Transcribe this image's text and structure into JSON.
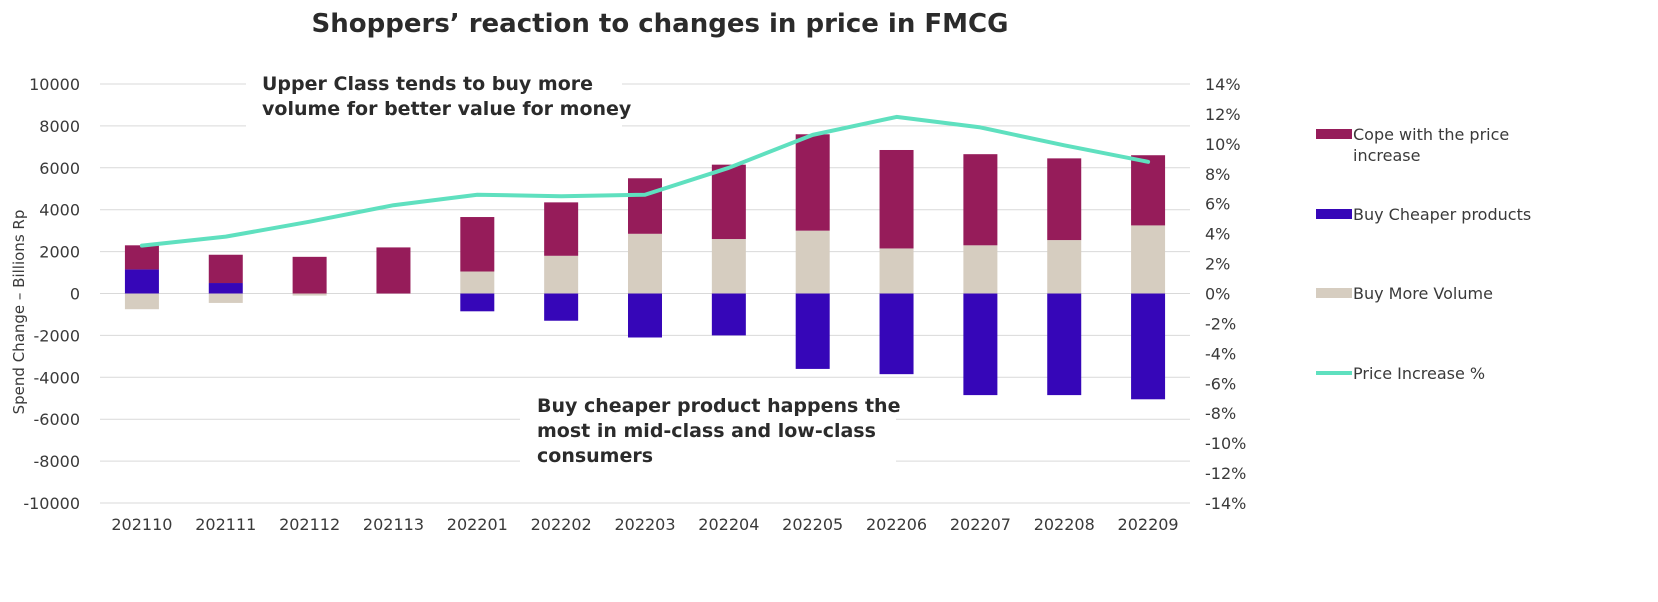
{
  "chart_data": {
    "type": "bar",
    "stacked": true,
    "title": "Shoppers’ reaction to changes in price in FMCG",
    "ylabel": "Spend Change – Billions Rp",
    "ylim": [
      -10000,
      10000
    ],
    "y_ticks": [
      "10000",
      "8000",
      "6000",
      "4000",
      "2000",
      "0",
      "-2000",
      "-4000",
      "-6000",
      "-8000",
      "-10000"
    ],
    "y2lim": [
      -14,
      14
    ],
    "y2_ticks": [
      "14%",
      "12%",
      "10%",
      "8%",
      "6%",
      "4%",
      "2%",
      "0%",
      "-2%",
      "-4%",
      "-6%",
      "-8%",
      "-10%",
      "-12%",
      "-14%"
    ],
    "grid": true,
    "legend_position": "right",
    "categories": [
      "202110",
      "202111",
      "202112",
      "202113",
      "202201",
      "202202",
      "202203",
      "202204",
      "202205",
      "202206",
      "202207",
      "202208",
      "202209"
    ],
    "series": [
      {
        "name": "Buy More Volume",
        "kind": "bar",
        "color": "#d6cdc0",
        "values": [
          -750,
          -450,
          -100,
          0,
          1050,
          1800,
          2850,
          2600,
          3000,
          2150,
          2300,
          2550,
          3250
        ]
      },
      {
        "name": "Buy Cheaper products",
        "kind": "bar",
        "color": "#3606b8",
        "values": [
          1150,
          500,
          0,
          0,
          -850,
          -1300,
          -2100,
          -2000,
          -3600,
          -3850,
          -4850,
          -4850,
          -5050
        ]
      },
      {
        "name": "Cope with the price increase",
        "kind": "bar",
        "color": "#961c5a",
        "values": [
          1150,
          1350,
          1750,
          2200,
          2600,
          2550,
          2650,
          3550,
          4600,
          4700,
          4350,
          3900,
          3350
        ]
      },
      {
        "name": "Price Increase %",
        "kind": "line",
        "axis": "right",
        "color": "#5fe0bf",
        "values": [
          3.2,
          3.8,
          4.8,
          5.9,
          6.6,
          6.5,
          6.6,
          8.4,
          10.6,
          11.8,
          11.1,
          9.9,
          8.8
        ]
      }
    ],
    "legend": [
      {
        "label": "Cope with the price increase",
        "line1": "Cope with the price",
        "line2": "increase",
        "color": "#961c5a",
        "kind": "bar"
      },
      {
        "label": "Buy Cheaper products",
        "line1": "Buy Cheaper products",
        "line2": "",
        "color": "#3606b8",
        "kind": "bar"
      },
      {
        "label": "Buy More Volume",
        "line1": "Buy More Volume",
        "line2": "",
        "color": "#d6cdc0",
        "kind": "bar"
      },
      {
        "label": "Price Increase %",
        "line1": "Price Increase %",
        "line2": "",
        "color": "#5fe0bf",
        "kind": "line"
      }
    ],
    "annotations": [
      {
        "lines": [
          "Upper Class tends to buy more",
          "volume for better value for money"
        ]
      },
      {
        "lines": [
          "Buy cheaper product happens the",
          "most in mid-class and low-class",
          "consumers"
        ]
      }
    ]
  }
}
